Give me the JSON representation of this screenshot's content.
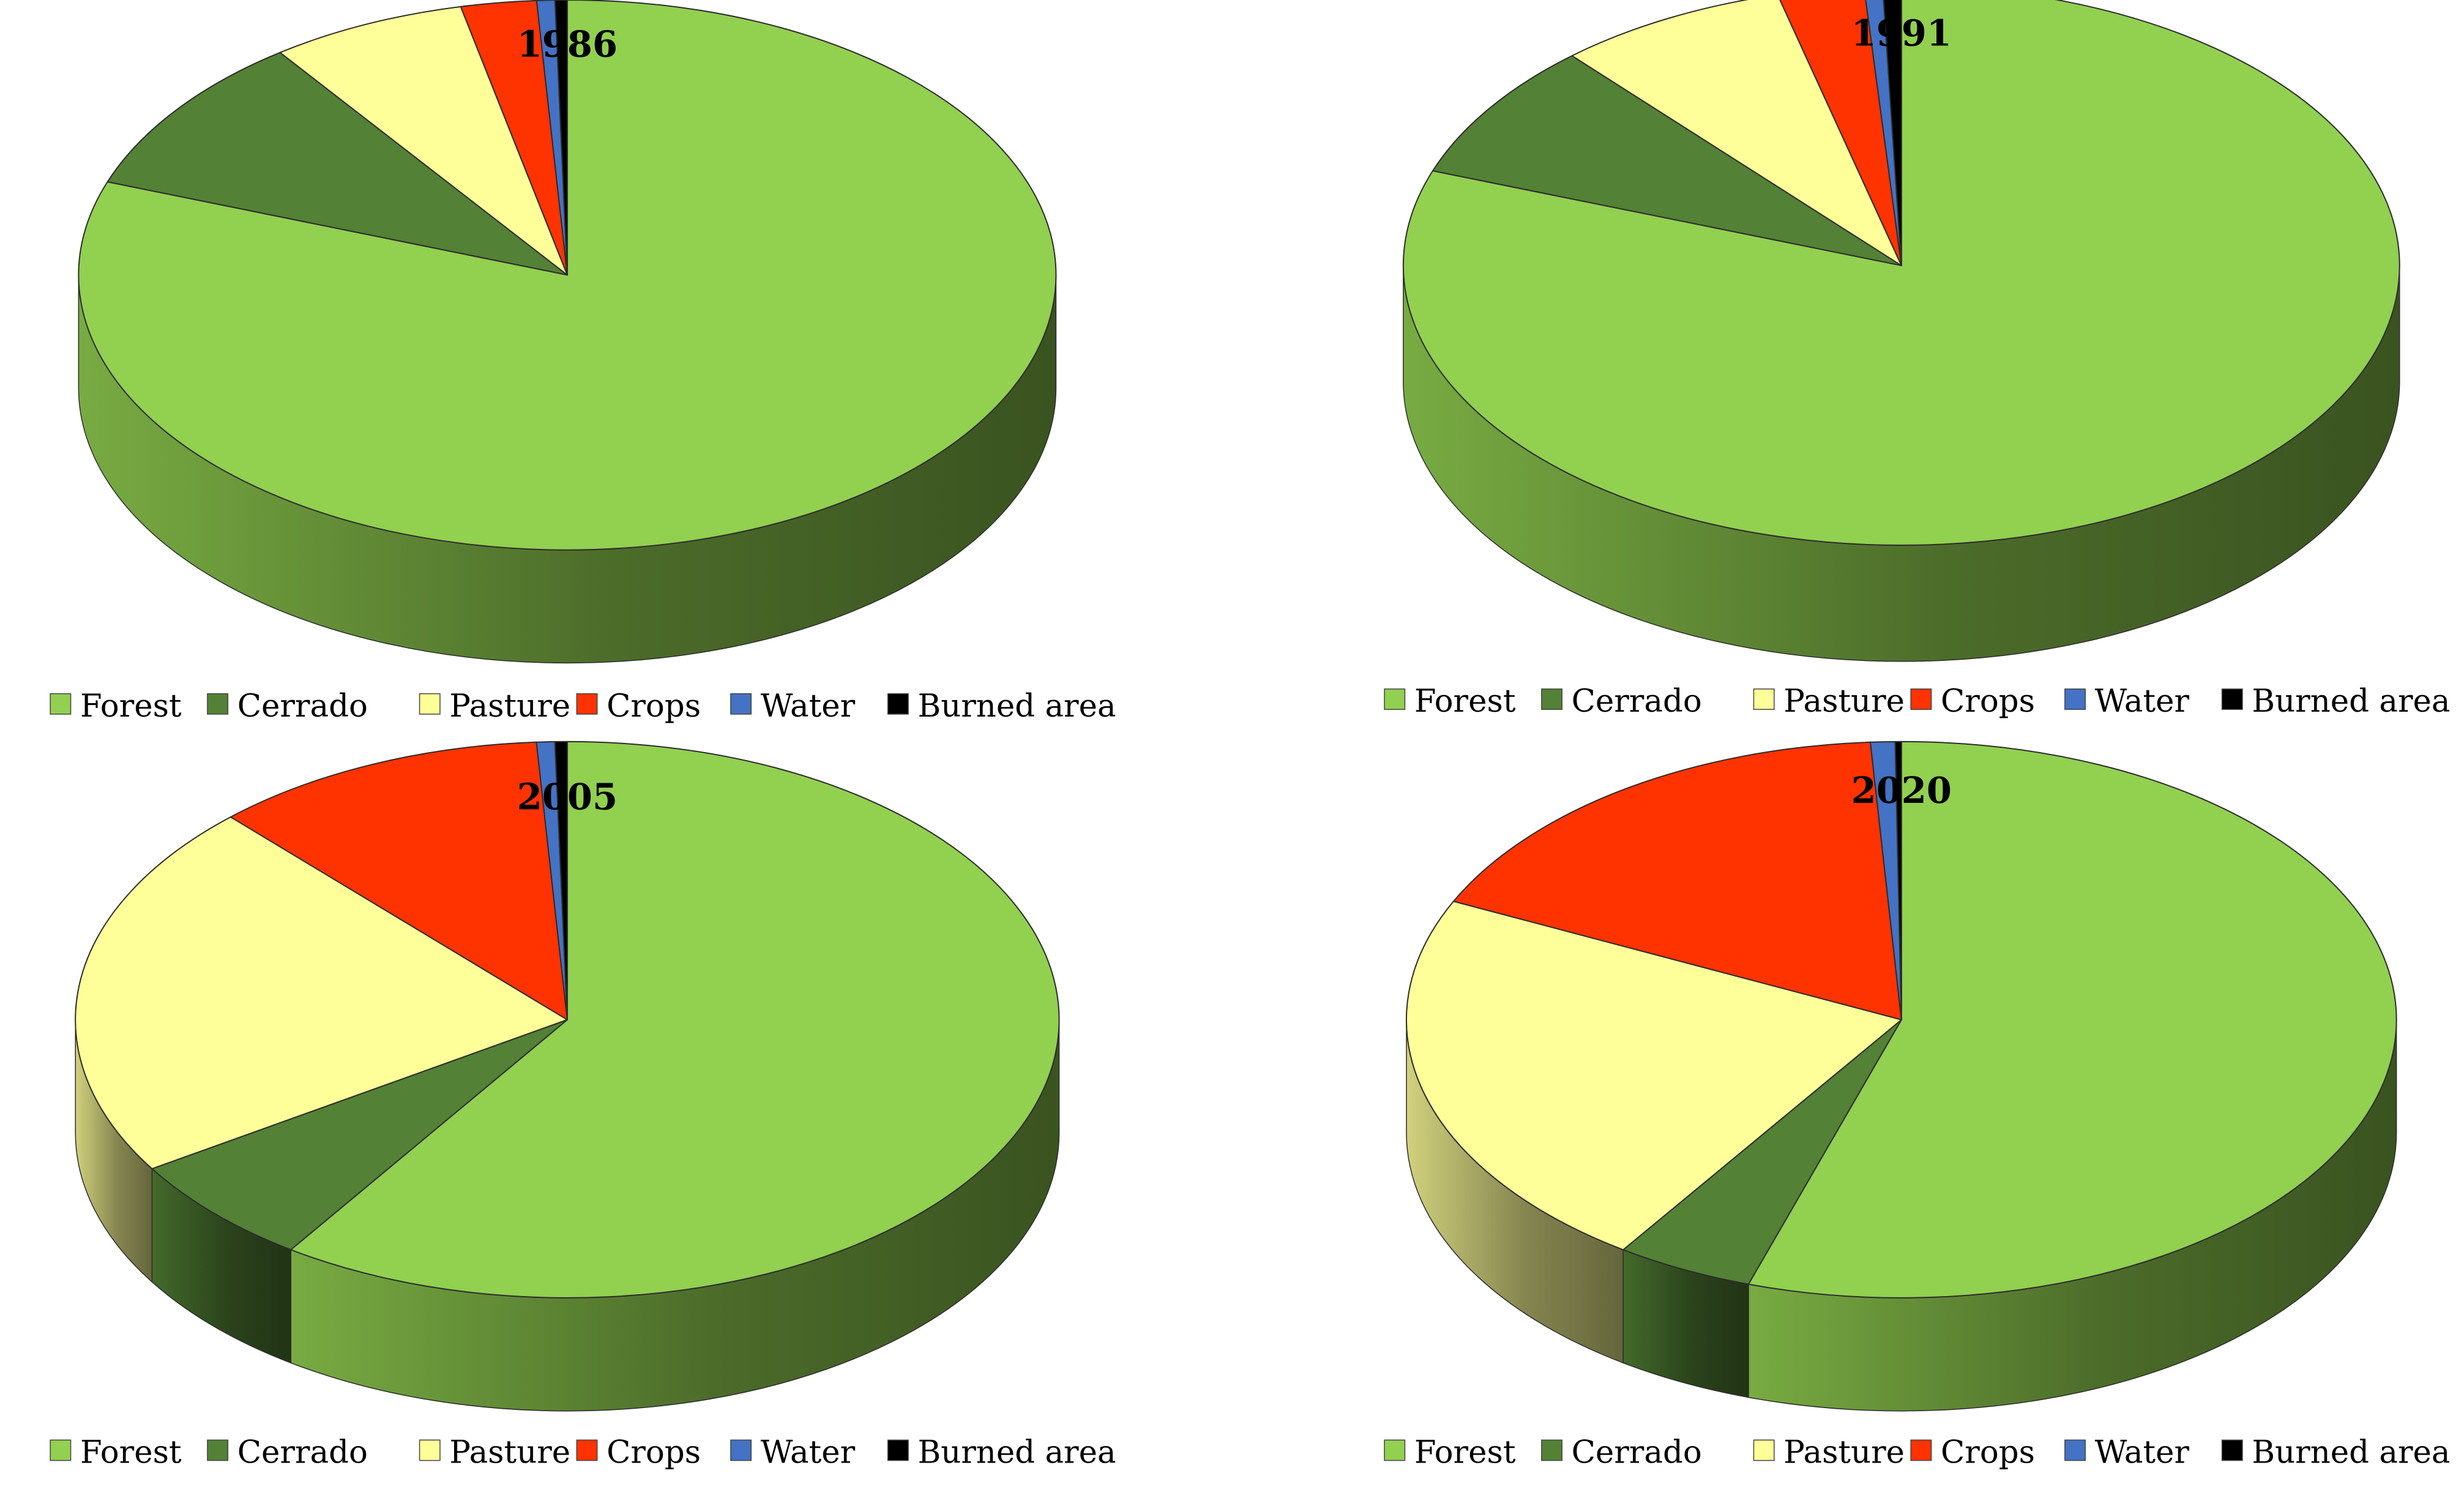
{
  "chart_data": [
    {
      "type": "pie",
      "title": "1986",
      "categories": [
        "Forest",
        "Cerrado",
        "Pasture",
        "Crops",
        "Water",
        "Burned area"
      ],
      "values": [
        80.5,
        9.5,
        6.5,
        2.5,
        0.6,
        0.4
      ],
      "legend": "bottom",
      "style": "3d"
    },
    {
      "type": "pie",
      "title": "1991",
      "categories": [
        "Forest",
        "Cerrado",
        "Pasture",
        "Crops",
        "Water",
        "Burned area"
      ],
      "values": [
        80.5,
        8.0,
        7.5,
        2.8,
        0.6,
        0.6
      ],
      "legend": "bottom",
      "style": "3d"
    },
    {
      "type": "pie",
      "title": "2005",
      "categories": [
        "Forest",
        "Cerrado",
        "Pasture",
        "Crops",
        "Water",
        "Burned area"
      ],
      "values": [
        59.5,
        6.5,
        22.0,
        11.0,
        0.6,
        0.4
      ],
      "legend": "bottom",
      "style": "3d"
    },
    {
      "type": "pie",
      "title": "2020",
      "categories": [
        "Forest",
        "Cerrado",
        "Pasture",
        "Crops",
        "Water",
        "Burned area"
      ],
      "values": [
        55.0,
        4.5,
        22.5,
        17.0,
        0.8,
        0.2
      ],
      "legend": "bottom",
      "style": "3d"
    }
  ],
  "colors": {
    "Forest": "#92d050",
    "Cerrado": "#538135",
    "Pasture": "#ffff99",
    "Crops": "#ff3300",
    "Water": "#4472c4",
    "Burned area": "#000000"
  }
}
